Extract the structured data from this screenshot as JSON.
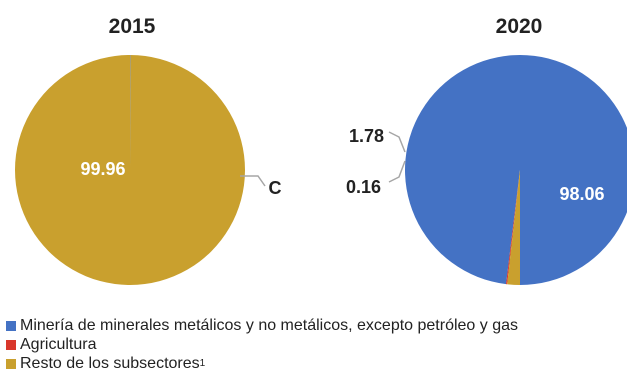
{
  "chart_data": [
    {
      "type": "pie",
      "title": "2015",
      "slices": [
        {
          "series": "Resto de los subsectores",
          "value": 99.96,
          "label": "99.96"
        },
        {
          "series": "Minería de minerales metálicos y no metálicos, excepto petróleo y gas",
          "value": 0.04,
          "label": "C"
        }
      ]
    },
    {
      "type": "pie",
      "title": "2020",
      "slices": [
        {
          "series": "Minería de minerales metálicos y no metálicos, excepto petróleo y gas",
          "value": 98.06,
          "label": "98.06"
        },
        {
          "series": "Agricultura",
          "value": 0.16,
          "label": "0.16"
        },
        {
          "series": "Resto de los subsectores",
          "value": 1.78,
          "label": "1.78"
        }
      ]
    }
  ],
  "legend": {
    "placement": "bottom-left",
    "items": [
      {
        "label": "Minería de minerales metálicos y no metálicos, excepto petróleo y gas",
        "sup": "",
        "color": "#4472C4"
      },
      {
        "label": "Agricultura",
        "sup": "",
        "color": "#D9372B"
      },
      {
        "label": "Resto de los subsectores",
        "sup": "1",
        "color": "#C9A02E"
      }
    ]
  }
}
